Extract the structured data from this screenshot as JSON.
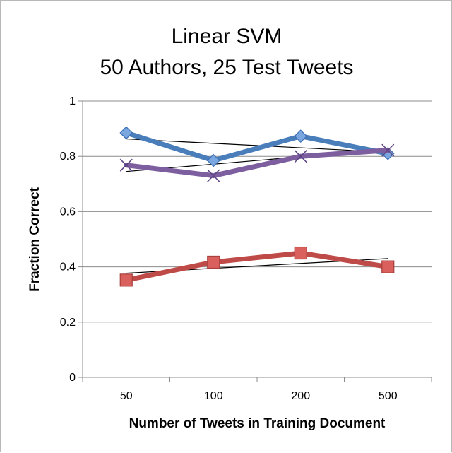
{
  "chart_data": {
    "type": "line",
    "title_lines": [
      "Linear SVM",
      "50 Authors, 25 Test Tweets"
    ],
    "xlabel": "Number of Tweets in Training Document",
    "ylabel": "Fraction Correct",
    "categories": [
      "50",
      "100",
      "200",
      "500"
    ],
    "ylim": [
      0,
      1
    ],
    "yticks": [
      0,
      0.2,
      0.4,
      0.6,
      0.8,
      1
    ],
    "ytick_labels": [
      "0",
      "0.2",
      "0.4",
      "0.6",
      "0.8",
      "1"
    ],
    "grid": "horizontal",
    "legend": "none",
    "series": [
      {
        "values": [
          0.885,
          0.785,
          0.873,
          0.81
        ],
        "color": "#4a7ebb",
        "marker": "diamond",
        "trend": [
          0.863,
          0.815
        ]
      },
      {
        "values": [
          0.768,
          0.73,
          0.8,
          0.822
        ],
        "color": "#7d5fa0",
        "marker": "x",
        "trend": [
          0.745,
          0.825
        ]
      },
      {
        "values": [
          0.352,
          0.417,
          0.45,
          0.4
        ],
        "color": "#be4b48",
        "marker": "square",
        "trend": [
          0.377,
          0.43
        ]
      }
    ]
  }
}
